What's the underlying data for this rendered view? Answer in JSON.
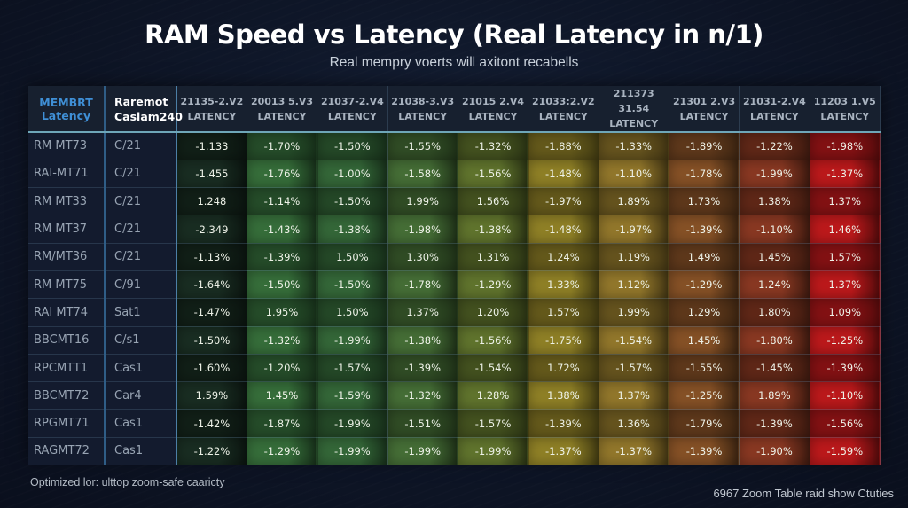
{
  "header": {
    "title": "RAM Speed vs Latency (Real Latency in n/1)",
    "subtitle": "Real mempry voerts will axitont recabells"
  },
  "footer": {
    "left": "Optimized lor: ulttop zoom-safe caaricty",
    "right": "6967 Zoom Table raid show Ctuties"
  },
  "colors": {
    "low": "#1f3524",
    "green": "#3d6e3a",
    "olive": "#7a7a2a",
    "amber": "#8a6b1e",
    "brown": "#7a3d1f",
    "red": "#b5141a",
    "header_accent": "#6ea6b8",
    "model_header": "#3f8fd6"
  },
  "chart_data": {
    "type": "heatmap",
    "title": "RAM Speed vs Latency (Real Latency in n/1)",
    "subtitle": "Real mempry voerts will axitont recabells",
    "row_header": {
      "line1": "MEMBRT",
      "line2": "Latency"
    },
    "cas_header": {
      "line1": "Raremot",
      "line2": "Caslam240"
    },
    "columns": [
      {
        "speed": "21135-2.V2",
        "unit": "LATENCY"
      },
      {
        "speed": "20013 5.V3",
        "unit": "LATENCY"
      },
      {
        "speed": "21037-2.V4",
        "unit": "LATENCY"
      },
      {
        "speed": "21038-3.V3",
        "unit": "LATENCY"
      },
      {
        "speed": "21015 2.V4",
        "unit": "LATENCY"
      },
      {
        "speed": "21033:2.V2",
        "unit": "LATENCY"
      },
      {
        "speed": "211373 31.54",
        "unit": "LATENCY"
      },
      {
        "speed": "21301 2.V3",
        "unit": "LATENCY"
      },
      {
        "speed": "21031-2.V4",
        "unit": "LATENCY"
      },
      {
        "speed": "11203 1.V5",
        "unit": "LATENCY"
      }
    ],
    "rows": [
      {
        "model": "RM MT73",
        "cas": "C/21",
        "values": [
          "-1.133",
          "-1.70%",
          "-1.50%",
          "-1.55%",
          "-1.32%",
          "-1.88%",
          "-1.33%",
          "-1.89%",
          "-1.22%",
          "-1.98%"
        ]
      },
      {
        "model": "RAI-MT71",
        "cas": "C/21",
        "values": [
          "-1.455",
          "-1.76%",
          "-1.00%",
          "-1.58%",
          "-1.56%",
          "-1.48%",
          "-1.10%",
          "-1.78%",
          "-1.99%",
          "-1.37%"
        ]
      },
      {
        "model": "RM MT33",
        "cas": "C/21",
        "values": [
          "1.248",
          "-1.14%",
          "-1.50%",
          "1.99%",
          "1.56%",
          "-1.97%",
          "1.89%",
          "1.73%",
          "1.38%",
          "1.37%"
        ]
      },
      {
        "model": "RM MT37",
        "cas": "C/21",
        "values": [
          "-2.349",
          "-1.43%",
          "-1.38%",
          "-1.98%",
          "-1.38%",
          "-1.48%",
          "-1.97%",
          "-1.39%",
          "-1.10%",
          "1.46%"
        ]
      },
      {
        "model": "RM/MT36",
        "cas": "C/21",
        "values": [
          "-1.13%",
          "-1.39%",
          "1.50%",
          "1.30%",
          "1.31%",
          "1.24%",
          "1.19%",
          "1.49%",
          "1.45%",
          "1.57%"
        ]
      },
      {
        "model": "RM MT75",
        "cas": "C/91",
        "values": [
          "-1.64%",
          "-1.50%",
          "-1.50%",
          "-1.78%",
          "-1.29%",
          "1.33%",
          "1.12%",
          "-1.29%",
          "1.24%",
          "1.37%"
        ]
      },
      {
        "model": "RAI MT74",
        "cas": "Sat1",
        "values": [
          "-1.47%",
          "1.95%",
          "1.50%",
          "1.37%",
          "1.20%",
          "1.57%",
          "1.99%",
          "1.29%",
          "1.80%",
          "1.09%"
        ]
      },
      {
        "model": "BBCMT16",
        "cas": "C/s1",
        "values": [
          "-1.50%",
          "-1.32%",
          "-1.99%",
          "-1.38%",
          "-1.56%",
          "-1.75%",
          "-1.54%",
          "1.45%",
          "-1.80%",
          "-1.25%"
        ]
      },
      {
        "model": "RPCMTT1",
        "cas": "Cas1",
        "values": [
          "-1.60%",
          "-1.20%",
          "-1.57%",
          "-1.39%",
          "-1.54%",
          "1.72%",
          "-1.57%",
          "-1.55%",
          "-1.45%",
          "-1.39%"
        ]
      },
      {
        "model": "BBCMT72",
        "cas": "Car4",
        "values": [
          "1.59%",
          "1.45%",
          "-1.59%",
          "-1.32%",
          "1.28%",
          "1.38%",
          "1.37%",
          "-1.25%",
          "1.89%",
          "-1.10%"
        ]
      },
      {
        "model": "RPGMT71",
        "cas": "Cas1",
        "values": [
          "-1.42%",
          "-1.87%",
          "-1.99%",
          "-1.51%",
          "-1.57%",
          "-1.39%",
          "1.36%",
          "-1.79%",
          "-1.39%",
          "-1.56%"
        ]
      },
      {
        "model": "RAGMT72",
        "cas": "Cas1",
        "values": [
          "-1.22%",
          "-1.29%",
          "-1.99%",
          "-1.99%",
          "-1.99%",
          "-1.37%",
          "-1.37%",
          "-1.39%",
          "-1.90%",
          "-1.59%"
        ]
      }
    ],
    "color_scale": "columns shade from dark green (left) through olive/amber to red (right); odd rows brighter",
    "legend": "none"
  }
}
